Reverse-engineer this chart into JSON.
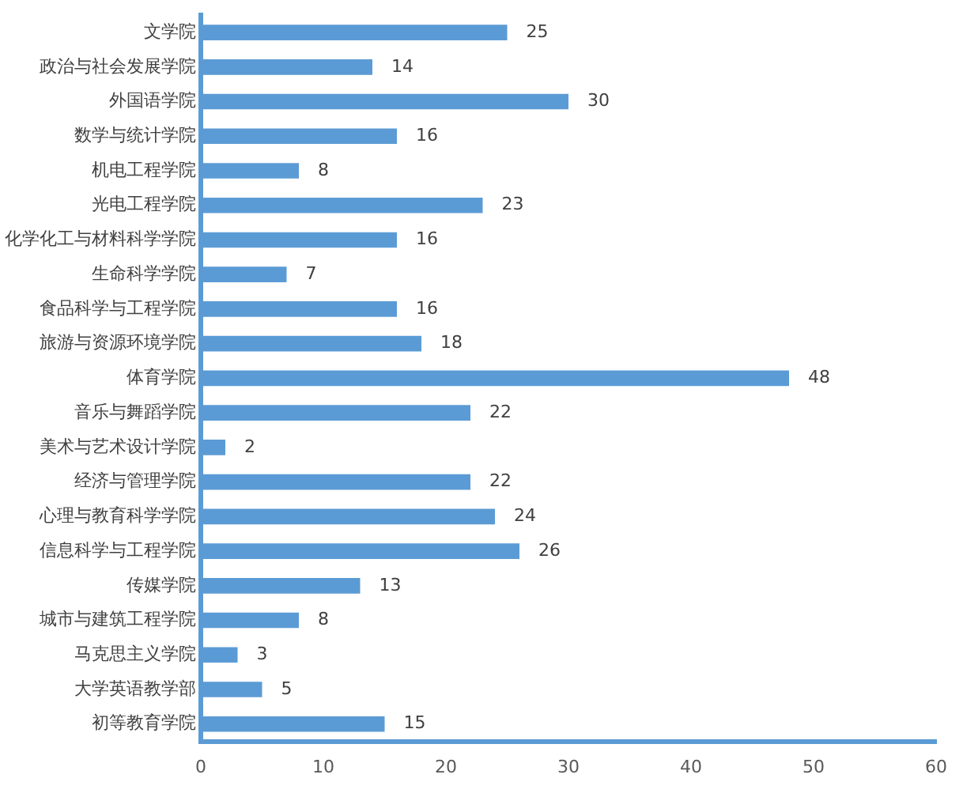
{
  "chart_data": {
    "type": "bar",
    "orientation": "horizontal",
    "categories": [
      "文学院",
      "政治与社会发展学院",
      "外国语学院",
      "数学与统计学院",
      "机电工程学院",
      "光电工程学院",
      "化学化工与材料科学学院",
      "生命科学学院",
      "食品科学与工程学院",
      "旅游与资源环境学院",
      "体育学院",
      "音乐与舞蹈学院",
      "美术与艺术设计学院",
      "经济与管理学院",
      "心理与教育科学学院",
      "信息科学与工程学院",
      "传媒学院",
      "城市与建筑工程学院",
      "马克思主义学院",
      "大学英语教学部",
      "初等教育学院"
    ],
    "values": [
      25,
      14,
      30,
      16,
      8,
      23,
      16,
      7,
      16,
      18,
      48,
      22,
      2,
      22,
      24,
      26,
      13,
      8,
      3,
      5,
      15
    ],
    "color": "#5b9bd5",
    "xlim": [
      0,
      60
    ],
    "xticks": [
      0,
      10,
      20,
      30,
      40,
      50,
      60
    ],
    "grid": false,
    "legend": false,
    "data_labels": true
  }
}
